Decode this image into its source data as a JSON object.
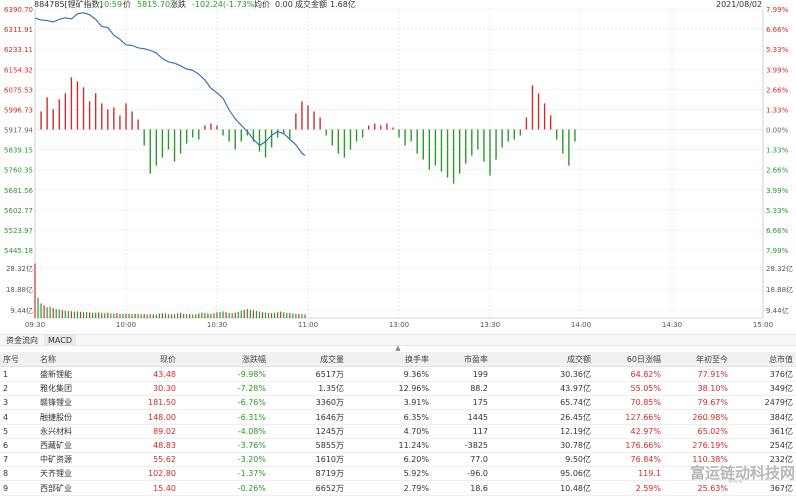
{
  "infobar": {
    "code_name": "884785[锂矿指数]",
    "time": "10:59",
    "price_label": "价",
    "price": "5815.70",
    "change_label": "涨跌",
    "change": "-102.24(-1.73%)",
    "avg_label": "均价",
    "avg": "0.00",
    "turnover_label": "成交金额",
    "turnover": "1.68亿",
    "date": "2021/08/02"
  },
  "chart_data": {
    "type": "line",
    "title": "",
    "price_axis": {
      "ticks": [
        "6390.70",
        "6311.91",
        "6233.11",
        "6154.32",
        "6075.53",
        "5996.73",
        "5917.94",
        "5839.15",
        "5760.35",
        "5681.56",
        "5602.77",
        "5523.97",
        "5445.18"
      ],
      "min": 5445.18,
      "max": 6390.7,
      "prev_close": 5917.94
    },
    "pct_axis": {
      "ticks": [
        "7.99%",
        "6.66%",
        "5.33%",
        "3.99%",
        "2.66%",
        "1.33%",
        "0.00%",
        "1.33%",
        "2.66%",
        "3.99%",
        "5.33%",
        "6.66%",
        "7.99%"
      ]
    },
    "volume_axis": {
      "ticks": [
        "28.32亿",
        "18.88亿",
        "9.44亿"
      ],
      "ticks_right": [
        "28.32亿",
        "18.88亿",
        "9.44亿"
      ],
      "max": 28.32
    },
    "time_axis": [
      "09:30",
      "10:00",
      "10:30",
      "11:00",
      "13:00",
      "13:30",
      "14:00",
      "14:30",
      "15:00"
    ],
    "price_series": {
      "name": "",
      "x": [
        0,
        2,
        4,
        6,
        8,
        10,
        12,
        14,
        16,
        18,
        20,
        22,
        24,
        26,
        28,
        30,
        32,
        34,
        36,
        38,
        40,
        42,
        44,
        46,
        48,
        50,
        52,
        54,
        56,
        58,
        60,
        62,
        64,
        66,
        68,
        70,
        72,
        74,
        76,
        78,
        80,
        82,
        84,
        86,
        88,
        89
      ],
      "y": [
        6355,
        6348,
        6345,
        6340,
        6350,
        6356,
        6352,
        6372,
        6376,
        6368,
        6350,
        6322,
        6318,
        6288,
        6272,
        6250,
        6248,
        6238,
        6235,
        6228,
        6218,
        6196,
        6183,
        6178,
        6168,
        6155,
        6150,
        6135,
        6112,
        6080,
        6062,
        6040,
        5995,
        5960,
        5935,
        5910,
        5880,
        5855,
        5870,
        5895,
        5910,
        5902,
        5880,
        5858,
        5825,
        5816
      ]
    },
    "volume_series": {
      "name": "",
      "x": [
        0,
        1,
        2,
        3,
        4,
        5,
        6,
        7,
        8,
        9,
        10,
        11,
        12,
        13,
        14,
        15,
        16,
        17,
        18,
        19,
        20,
        21,
        22,
        23,
        24,
        25,
        26,
        27,
        28,
        29,
        30,
        31,
        32,
        33,
        34,
        35,
        36,
        37,
        38,
        39,
        40,
        41,
        42,
        43,
        44,
        45,
        46,
        47,
        48,
        49,
        50,
        51,
        52,
        53,
        54,
        55,
        56,
        57,
        58,
        59,
        60,
        61,
        62,
        63,
        64,
        65,
        66,
        67,
        68,
        69,
        70,
        71,
        72,
        73,
        74,
        75,
        76,
        77,
        78,
        79,
        80,
        81,
        82,
        83,
        84,
        85,
        86,
        87,
        88,
        89
      ],
      "values": [
        28,
        10.5,
        7.5,
        6.5,
        5.5,
        5.8,
        5.2,
        4.6,
        4.4,
        4.1,
        3.8,
        3.6,
        3.5,
        3.3,
        3.4,
        3.2,
        3.0,
        3.1,
        2.9,
        2.8,
        2.7,
        2.9,
        2.6,
        2.5,
        2.7,
        2.4,
        2.3,
        2.6,
        2.2,
        2.1,
        2.3,
        2.2,
        2.0,
        2.1,
        2.2,
        1.9,
        2.0,
        1.8,
        2.0,
        1.9,
        1.8,
        2.2,
        2.5,
        2.3,
        1.9,
        1.8,
        2.0,
        2.4,
        2.6,
        2.1,
        1.9,
        2.0,
        1.8,
        1.9,
        2.4,
        2.8,
        2.6,
        2.3,
        2.2,
        2.5,
        2.9,
        3.1,
        3.4,
        3.0,
        2.7,
        2.6,
        2.8,
        3.2,
        3.8,
        4.1,
        4.6,
        4.2,
        3.9,
        3.6,
        3.3,
        3.0,
        2.8,
        2.6,
        2.4,
        2.7,
        3.0,
        3.3,
        3.0,
        2.7,
        2.5,
        2.3,
        2.1,
        2.0,
        1.9,
        1.8
      ]
    },
    "macd_series": {
      "name": "",
      "x": [
        1,
        2,
        3,
        4,
        5,
        6,
        7,
        8,
        9,
        10,
        11,
        12,
        13,
        14,
        15,
        16,
        17,
        18,
        19,
        20,
        21,
        22,
        23,
        24,
        25,
        26,
        27,
        28,
        29,
        30,
        31,
        32,
        33,
        34,
        35,
        36,
        37,
        38,
        39,
        40,
        41,
        42,
        43,
        44,
        45,
        46,
        47,
        48,
        49,
        50,
        51,
        52,
        53,
        54,
        55,
        56,
        57,
        58,
        59,
        60,
        61,
        62,
        63,
        64,
        65,
        66,
        67,
        68,
        69,
        70,
        71,
        72,
        73,
        74,
        75,
        76,
        77,
        78,
        79,
        80,
        81,
        82,
        83,
        84,
        85,
        86,
        87,
        88,
        89
      ],
      "values": [
        0.9,
        1.6,
        1.0,
        1.5,
        1.8,
        2.6,
        2.4,
        2.1,
        1.4,
        1.8,
        1.3,
        1.0,
        1.1,
        0.7,
        1.3,
        0.9,
        0.5,
        -0.8,
        -2.2,
        -1.8,
        -1.4,
        -1.0,
        -1.6,
        -1.2,
        -0.7,
        -0.4,
        -0.5,
        0.2,
        0.3,
        0.2,
        -0.3,
        -0.6,
        -1.0,
        -0.6,
        -0.3,
        -0.6,
        -1.1,
        -1.4,
        -0.9,
        -0.4,
        -0.2,
        -0.5,
        0.8,
        1.4,
        1.2,
        0.9,
        0.6,
        -0.3,
        -0.8,
        -1.2,
        -1.4,
        -1.0,
        -0.6,
        -0.4,
        0.2,
        0.3,
        0.2,
        0.3,
        0.1,
        -0.4,
        -0.8,
        -0.6,
        -1.2,
        -1.5,
        -2.0,
        -1.8,
        -2.1,
        -2.4,
        -2.7,
        -2.2,
        -1.7,
        -1.3,
        -1.0,
        -1.6,
        -2.3,
        -1.5,
        -0.9,
        -0.6,
        -0.5,
        -0.3,
        0.6,
        2.2,
        1.8,
        1.3,
        0.7,
        -0.5,
        -1.2,
        -1.8,
        -0.6
      ],
      "ylim": [
        -3,
        3
      ]
    },
    "grid": true
  },
  "tabs": [
    {
      "label": "资金流向"
    },
    {
      "label": "MACD"
    }
  ],
  "table": {
    "headers": [
      "序号",
      "名称",
      "现价",
      "涨跌幅",
      "成交量",
      "换手率",
      "市盈率",
      "成交额",
      "60日涨幅",
      "年初至今",
      "总市值"
    ],
    "rows": [
      {
        "idx": "1",
        "name": "盛新锂能",
        "price": "43.48",
        "chg": "-9.98%",
        "vol": "6517万",
        "turnover": "9.36%",
        "pe": "199",
        "amount": "30.36亿",
        "d60": "64.82%",
        "ytd": "77.91%",
        "cap": "376亿"
      },
      {
        "idx": "2",
        "name": "雅化集团",
        "price": "30.30",
        "chg": "-7.28%",
        "vol": "1.35亿",
        "turnover": "12.96%",
        "pe": "88.2",
        "amount": "43.97亿",
        "d60": "55.05%",
        "ytd": "38.10%",
        "cap": "349亿"
      },
      {
        "idx": "3",
        "name": "赣锋锂业",
        "price": "181.50",
        "chg": "-6.76%",
        "vol": "3360万",
        "turnover": "3.91%",
        "pe": "175",
        "amount": "65.74亿",
        "d60": "70.85%",
        "ytd": "79.67%",
        "cap": "2479亿"
      },
      {
        "idx": "4",
        "name": "融捷股份",
        "price": "148.00",
        "chg": "-6.31%",
        "vol": "1646万",
        "turnover": "6.35%",
        "pe": "1445",
        "amount": "26.45亿",
        "d60": "127.66%",
        "ytd": "260.98%",
        "cap": "384亿"
      },
      {
        "idx": "5",
        "name": "永兴材料",
        "price": "89.02",
        "chg": "-4.08%",
        "vol": "1245万",
        "turnover": "4.70%",
        "pe": "117",
        "amount": "12.19亿",
        "d60": "42.97%",
        "ytd": "65.02%",
        "cap": "361亿"
      },
      {
        "idx": "6",
        "name": "西藏矿业",
        "price": "48.83",
        "chg": "-3.76%",
        "vol": "5855万",
        "turnover": "11.24%",
        "pe": "-3825",
        "amount": "30.78亿",
        "d60": "176.66%",
        "ytd": "276.19%",
        "cap": "254亿"
      },
      {
        "idx": "7",
        "name": "中矿资源",
        "price": "55.62",
        "chg": "-3.20%",
        "vol": "1610万",
        "turnover": "6.20%",
        "pe": "77.0",
        "amount": "9.50亿",
        "d60": "76.84%",
        "ytd": "110.38%",
        "cap": "232亿"
      },
      {
        "idx": "8",
        "name": "天齐锂业",
        "price": "102.80",
        "chg": "-1.37%",
        "vol": "8719万",
        "turnover": "5.92%",
        "pe": "-96.0",
        "amount": "95.06亿",
        "d60": "119.1",
        "ytd": "",
        "cap": ""
      },
      {
        "idx": "9",
        "name": "西部矿业",
        "price": "15.40",
        "chg": "-0.26%",
        "vol": "6652万",
        "turnover": "2.79%",
        "pe": "18.6",
        "amount": "10.48亿",
        "d60": "2.59%",
        "ytd": "25.63%",
        "cap": "367亿"
      }
    ]
  },
  "watermark": {
    "text": "富运链动科技网",
    "sub": "www"
  },
  "colors": {
    "up": "#d22b2b",
    "down": "#2a9a2a",
    "price_line": "#2b6cb0",
    "grid": "#d9d9d9"
  }
}
